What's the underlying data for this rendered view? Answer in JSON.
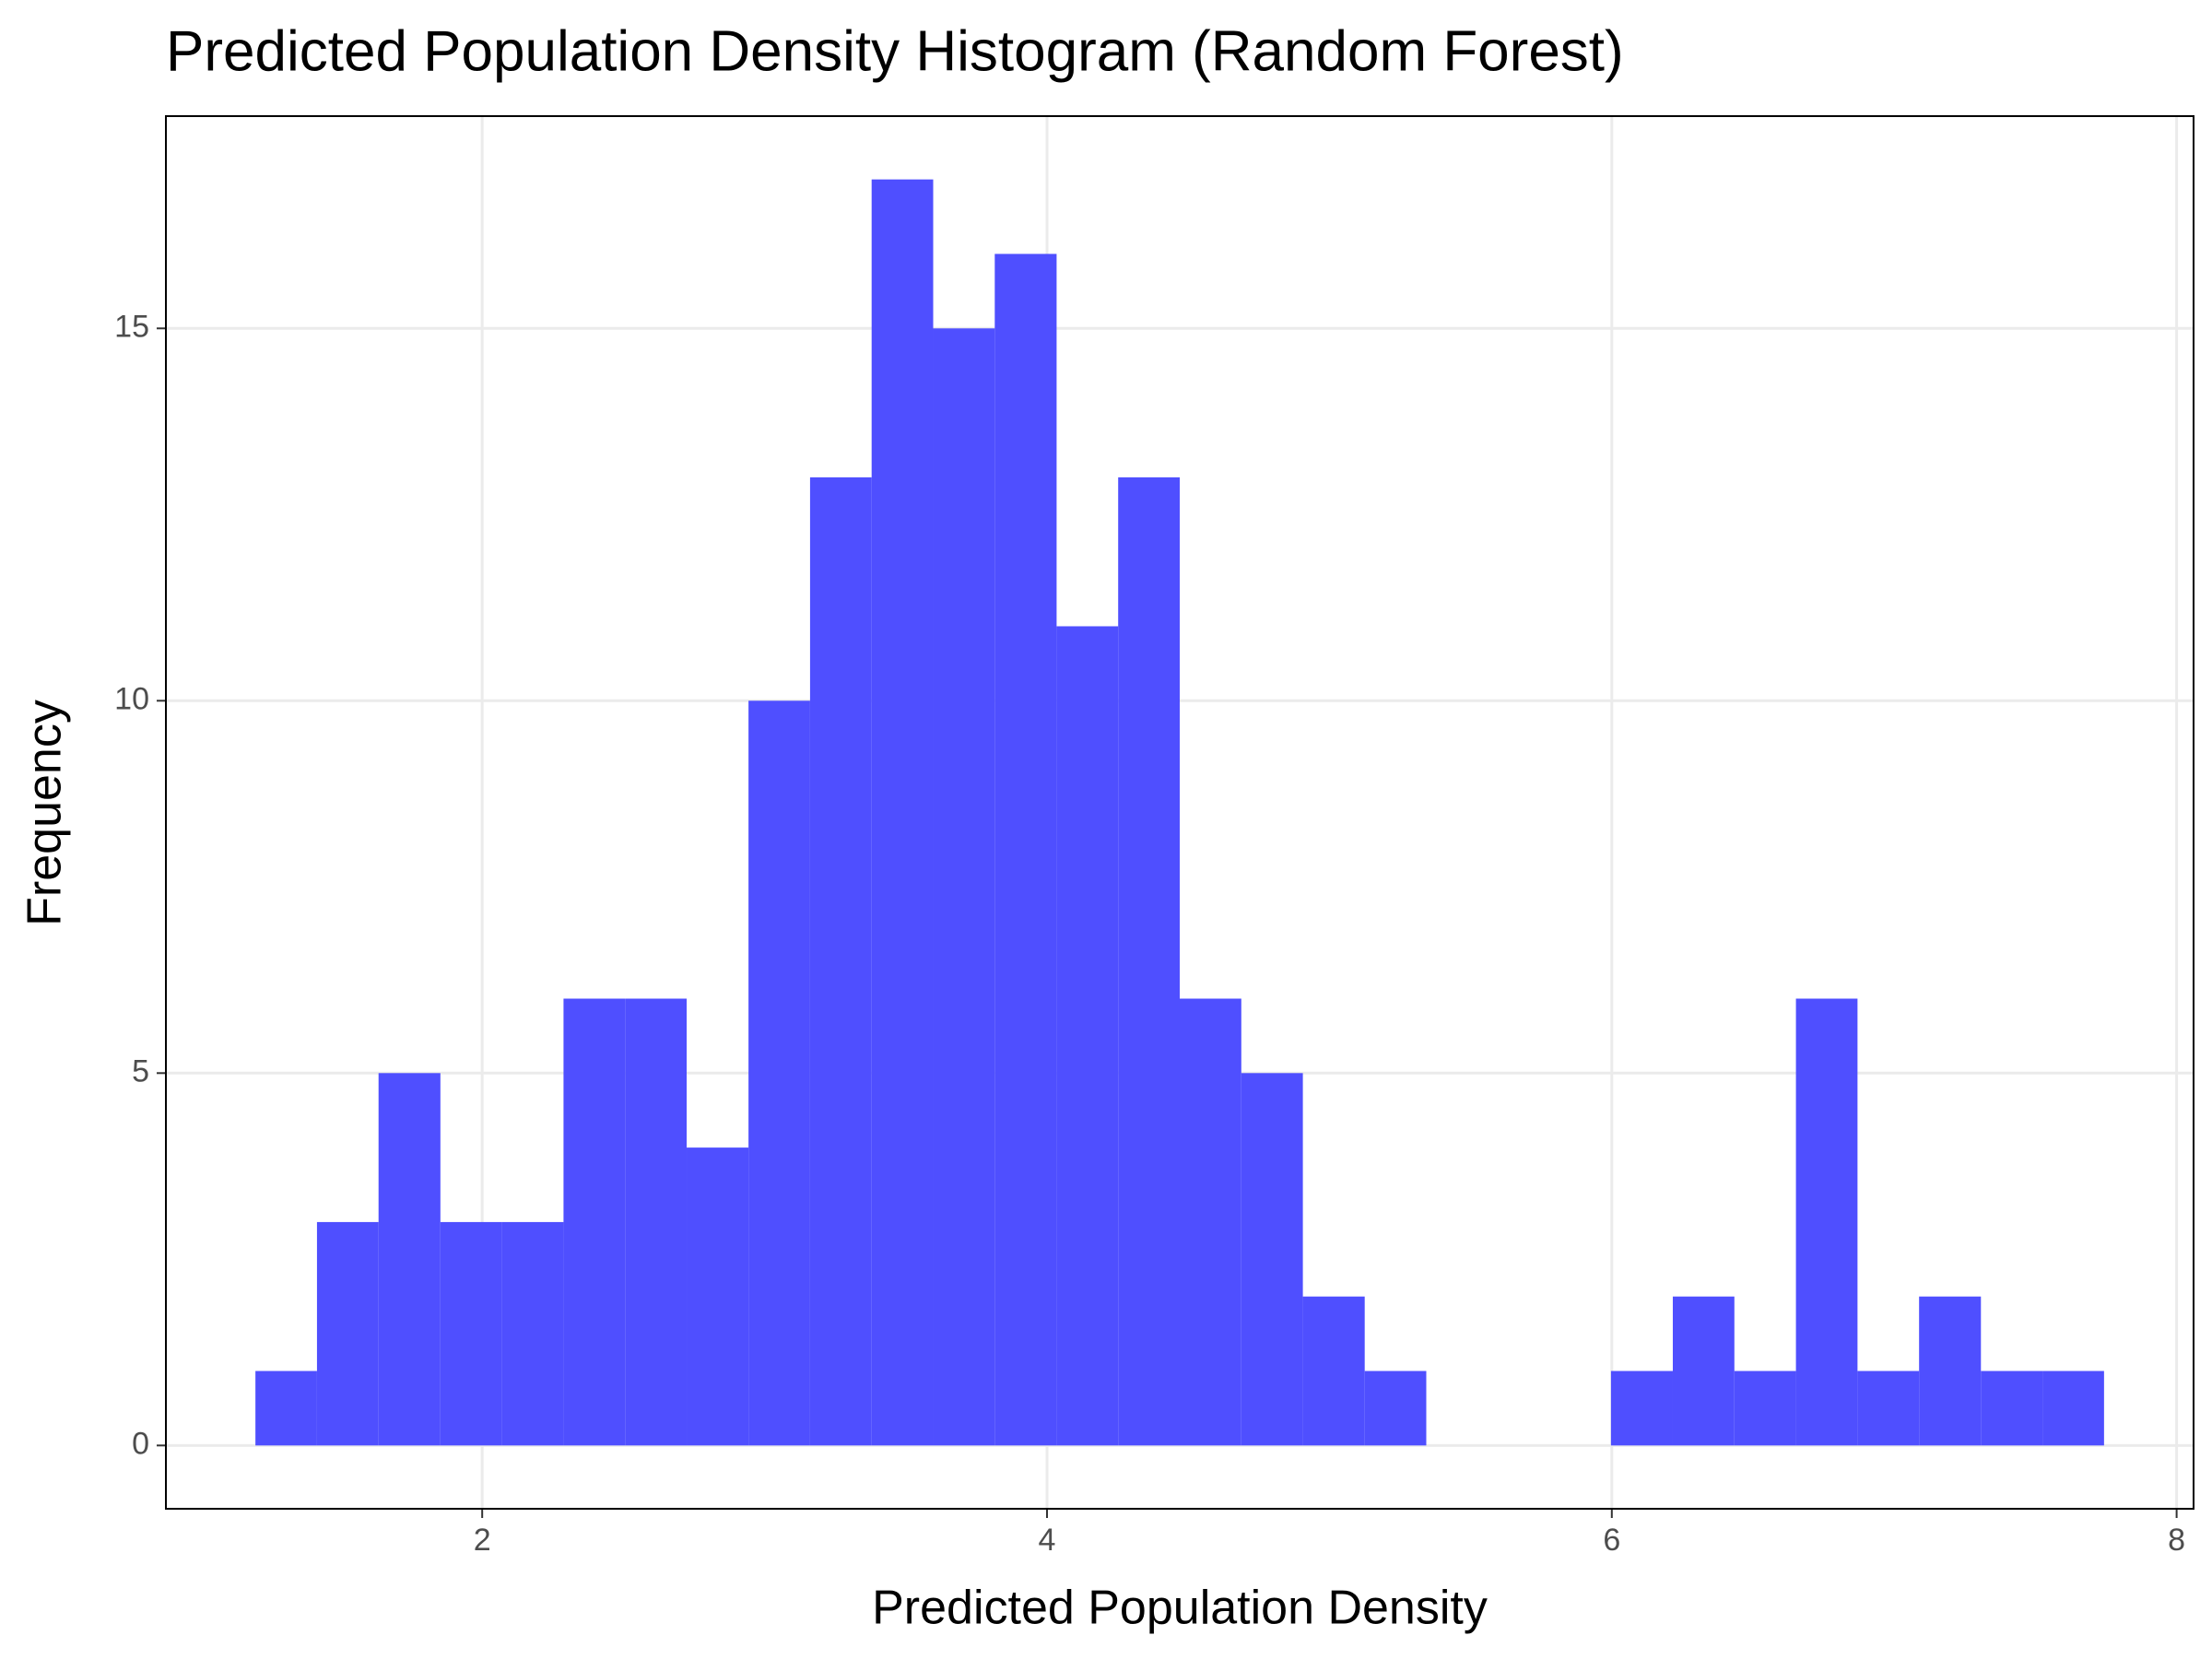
{
  "chart_data": {
    "type": "histogram",
    "title": "Predicted Population Density Histogram (Random Forest)",
    "x_label": "Predicted Population Density",
    "y_label": "Frequency",
    "bins": [
      1.197,
      1.415,
      1.633,
      1.852,
      2.07,
      2.288,
      2.506,
      2.724,
      2.943,
      3.161,
      3.379,
      3.597,
      3.815,
      4.034,
      4.252,
      4.47,
      4.688,
      4.906,
      5.125,
      5.343,
      5.561,
      5.779,
      5.997,
      6.216,
      6.434,
      6.652,
      6.87,
      7.088,
      7.307,
      7.525,
      7.743
    ],
    "values": [
      1,
      3,
      5,
      3,
      3,
      6,
      6,
      4,
      10,
      13,
      17,
      15,
      16,
      11,
      13,
      6,
      5,
      2,
      1,
      0,
      0,
      0,
      1,
      2,
      1,
      6,
      1,
      2,
      1,
      1
    ],
    "color": "#4f4fff",
    "xlim": [
      0.88,
      8.06
    ],
    "xticks": [
      2,
      4,
      6,
      8
    ],
    "ylim": [
      -0.85,
      17.85
    ],
    "yticks": [
      0,
      5,
      10,
      15
    ],
    "grid": true
  }
}
